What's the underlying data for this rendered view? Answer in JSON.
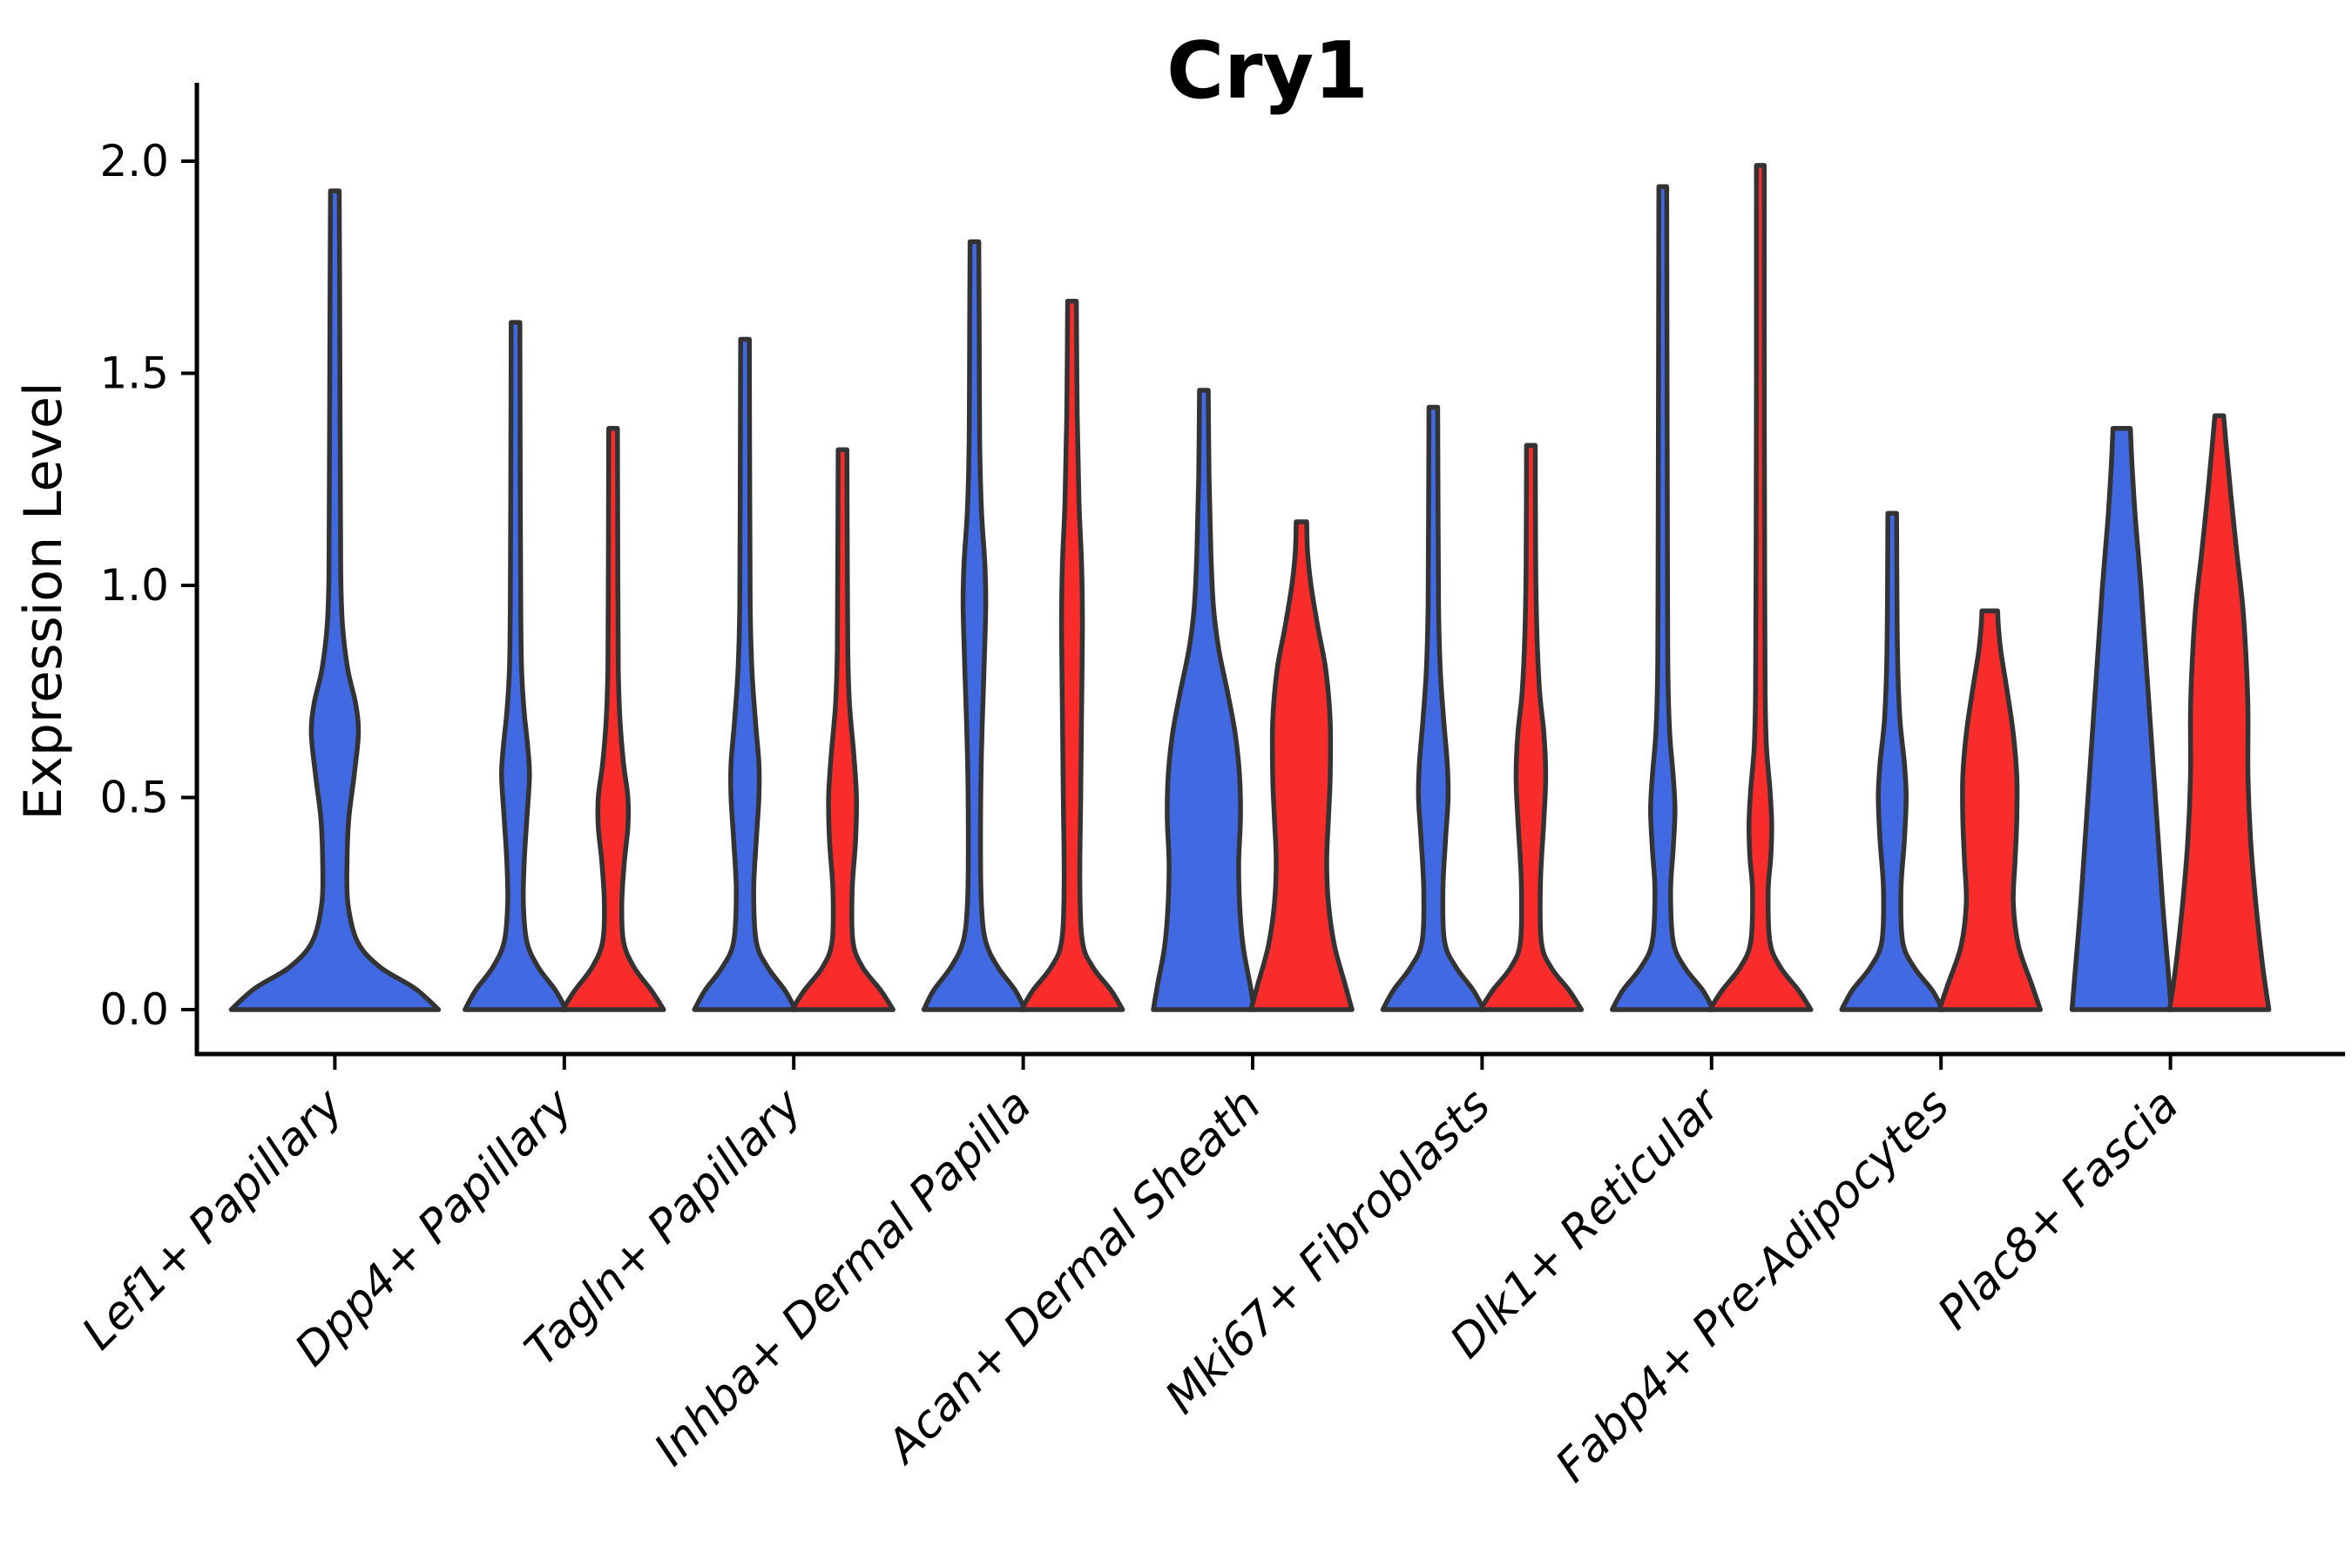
{
  "title": "Cry1",
  "axes": {
    "y": {
      "label": "Expression Level",
      "tick_labels": [
        "0.0",
        "0.5",
        "1.0",
        "1.5",
        "2.0"
      ],
      "tick_values": [
        0,
        0.5,
        1.0,
        1.5,
        2.0
      ],
      "range": [
        0,
        2.05
      ]
    },
    "x": {
      "categories": [
        "Lef1+ Papillary",
        "Dpp4+ Papillary",
        "Tagln+ Papillary",
        "Inhba+ Dermal Papilla",
        "Acan+ Dermal Sheath",
        "Mki67+ Fibroblasts",
        "Dlk1+ Reticular",
        "Fabp4+ Pre-Adipocytes",
        "Plac8+ Fascia"
      ]
    }
  },
  "colors": {
    "blue_fill": "#4169E1",
    "red_fill": "#F92C2C",
    "outline": "#333333",
    "axis": "#000000"
  },
  "chart_data": {
    "type": "violin",
    "title": "Cry1",
    "ylabel": "Expression Level",
    "ylim": [
      0,
      2.05
    ],
    "grid": false,
    "legend": "none",
    "categories": [
      "Lef1+ Papillary",
      "Dpp4+ Papillary",
      "Tagln+ Papillary",
      "Inhba+ Dermal Papilla",
      "Acan+ Dermal Sheath",
      "Mki67+ Fibroblasts",
      "Dlk1+ Reticular",
      "Fabp4+ Pre-Adipocytes",
      "Plac8+ Fascia"
    ],
    "note": "Split violin plot; each category has a blue (left) and red (right) violin except Lef1+ Papillary which has a single blue violin. Profiles are [expression_value, half_width_px] density outlines; max = top of violin spike.",
    "violins": [
      {
        "category": "Lef1+ Papillary",
        "side": "blue",
        "max": 1.93,
        "profile": [
          [
            0,
            119
          ],
          [
            0.05,
            92
          ],
          [
            0.1,
            52
          ],
          [
            0.16,
            26
          ],
          [
            0.25,
            15
          ],
          [
            0.35,
            14
          ],
          [
            0.45,
            16
          ],
          [
            0.55,
            22
          ],
          [
            0.65,
            27
          ],
          [
            0.72,
            24
          ],
          [
            0.8,
            15
          ],
          [
            0.9,
            9
          ],
          [
            1.0,
            7
          ],
          [
            1.15,
            6.5
          ],
          [
            1.4,
            6
          ],
          [
            1.7,
            5.5
          ],
          [
            1.93,
            5
          ]
        ]
      },
      {
        "category": "Dpp4+ Papillary",
        "side": "blue",
        "max": 1.62,
        "profile": [
          [
            0,
            58
          ],
          [
            0.045,
            46
          ],
          [
            0.1,
            26
          ],
          [
            0.16,
            13
          ],
          [
            0.25,
            9
          ],
          [
            0.35,
            10
          ],
          [
            0.45,
            13
          ],
          [
            0.55,
            16
          ],
          [
            0.62,
            14
          ],
          [
            0.7,
            10
          ],
          [
            0.8,
            7
          ],
          [
            0.95,
            6
          ],
          [
            1.2,
            5.5
          ],
          [
            1.62,
            5
          ]
        ]
      },
      {
        "category": "Dpp4+ Papillary",
        "side": "red",
        "max": 1.37,
        "profile": [
          [
            0,
            58
          ],
          [
            0.045,
            44
          ],
          [
            0.1,
            24
          ],
          [
            0.16,
            12
          ],
          [
            0.25,
            10
          ],
          [
            0.35,
            13
          ],
          [
            0.43,
            17
          ],
          [
            0.5,
            17
          ],
          [
            0.58,
            12
          ],
          [
            0.68,
            8
          ],
          [
            0.8,
            6
          ],
          [
            1.0,
            5.5
          ],
          [
            1.37,
            5
          ]
        ]
      },
      {
        "category": "Tagln+ Papillary",
        "side": "blue",
        "max": 1.58,
        "profile": [
          [
            0,
            58
          ],
          [
            0.045,
            46
          ],
          [
            0.1,
            26
          ],
          [
            0.16,
            13
          ],
          [
            0.28,
            10
          ],
          [
            0.4,
            13
          ],
          [
            0.5,
            16
          ],
          [
            0.58,
            16
          ],
          [
            0.68,
            12
          ],
          [
            0.8,
            8
          ],
          [
            0.95,
            6
          ],
          [
            1.2,
            5.5
          ],
          [
            1.58,
            5
          ]
        ]
      },
      {
        "category": "Tagln+ Papillary",
        "side": "red",
        "max": 1.32,
        "profile": [
          [
            0,
            58
          ],
          [
            0.045,
            44
          ],
          [
            0.1,
            23
          ],
          [
            0.16,
            12
          ],
          [
            0.28,
            11
          ],
          [
            0.4,
            15
          ],
          [
            0.5,
            16
          ],
          [
            0.6,
            13
          ],
          [
            0.72,
            8
          ],
          [
            0.85,
            6
          ],
          [
            1.05,
            5.5
          ],
          [
            1.32,
            5
          ]
        ]
      },
      {
        "category": "Inhba+ Dermal Papilla",
        "side": "blue",
        "max": 1.81,
        "profile": [
          [
            0,
            58
          ],
          [
            0.045,
            47
          ],
          [
            0.1,
            27
          ],
          [
            0.16,
            13
          ],
          [
            0.25,
            8
          ],
          [
            0.4,
            7
          ],
          [
            0.6,
            8
          ],
          [
            0.8,
            11
          ],
          [
            0.95,
            13
          ],
          [
            1.05,
            12
          ],
          [
            1.18,
            8
          ],
          [
            1.35,
            6
          ],
          [
            1.6,
            5.5
          ],
          [
            1.81,
            5
          ]
        ]
      },
      {
        "category": "Inhba+ Dermal Papilla",
        "side": "red",
        "max": 1.67,
        "profile": [
          [
            0,
            58
          ],
          [
            0.045,
            45
          ],
          [
            0.1,
            24
          ],
          [
            0.16,
            12
          ],
          [
            0.3,
            9
          ],
          [
            0.5,
            10
          ],
          [
            0.7,
            11
          ],
          [
            0.9,
            12
          ],
          [
            1.05,
            11
          ],
          [
            1.2,
            8
          ],
          [
            1.4,
            6
          ],
          [
            1.67,
            5
          ]
        ]
      },
      {
        "category": "Acan+ Dermal Sheath",
        "side": "blue",
        "max": 1.46,
        "profile": [
          [
            0,
            58
          ],
          [
            0.06,
            53
          ],
          [
            0.15,
            45
          ],
          [
            0.25,
            41
          ],
          [
            0.35,
            40
          ],
          [
            0.45,
            42
          ],
          [
            0.55,
            41
          ],
          [
            0.65,
            36
          ],
          [
            0.75,
            27
          ],
          [
            0.85,
            17
          ],
          [
            0.95,
            11
          ],
          [
            1.08,
            8
          ],
          [
            1.25,
            6
          ],
          [
            1.46,
            5
          ]
        ]
      },
      {
        "category": "Acan+ Dermal Sheath",
        "side": "red",
        "max": 1.15,
        "profile": [
          [
            0,
            58
          ],
          [
            0.06,
            50
          ],
          [
            0.15,
            38
          ],
          [
            0.25,
            31
          ],
          [
            0.35,
            29
          ],
          [
            0.45,
            31
          ],
          [
            0.55,
            33
          ],
          [
            0.68,
            33
          ],
          [
            0.8,
            28
          ],
          [
            0.9,
            19
          ],
          [
            1.0,
            11
          ],
          [
            1.08,
            7
          ],
          [
            1.15,
            6
          ]
        ]
      },
      {
        "category": "Mki67+ Fibroblasts",
        "side": "blue",
        "max": 1.42,
        "profile": [
          [
            0,
            58
          ],
          [
            0.045,
            46
          ],
          [
            0.1,
            26
          ],
          [
            0.16,
            13
          ],
          [
            0.28,
            11
          ],
          [
            0.4,
            14
          ],
          [
            0.5,
            17
          ],
          [
            0.58,
            16
          ],
          [
            0.68,
            12
          ],
          [
            0.8,
            8
          ],
          [
            0.95,
            6
          ],
          [
            1.15,
            5.5
          ],
          [
            1.42,
            5
          ]
        ]
      },
      {
        "category": "Mki67+ Fibroblasts",
        "side": "red",
        "max": 1.33,
        "profile": [
          [
            0,
            58
          ],
          [
            0.045,
            44
          ],
          [
            0.1,
            23
          ],
          [
            0.16,
            12
          ],
          [
            0.3,
            11
          ],
          [
            0.45,
            15
          ],
          [
            0.55,
            17
          ],
          [
            0.65,
            15
          ],
          [
            0.75,
            10
          ],
          [
            0.88,
            7
          ],
          [
            1.05,
            5.5
          ],
          [
            1.33,
            5
          ]
        ]
      },
      {
        "category": "Dlk1+ Reticular",
        "side": "blue",
        "max": 1.94,
        "profile": [
          [
            0,
            58
          ],
          [
            0.045,
            46
          ],
          [
            0.1,
            25
          ],
          [
            0.16,
            12
          ],
          [
            0.28,
            9
          ],
          [
            0.38,
            12
          ],
          [
            0.47,
            14
          ],
          [
            0.55,
            12
          ],
          [
            0.65,
            8
          ],
          [
            0.78,
            6
          ],
          [
            0.95,
            5.5
          ],
          [
            1.4,
            5
          ],
          [
            1.94,
            4.5
          ]
        ]
      },
      {
        "category": "Dlk1+ Reticular",
        "side": "red",
        "max": 1.99,
        "profile": [
          [
            0,
            58
          ],
          [
            0.045,
            44
          ],
          [
            0.1,
            23
          ],
          [
            0.16,
            11
          ],
          [
            0.28,
            9
          ],
          [
            0.36,
            12
          ],
          [
            0.44,
            13
          ],
          [
            0.52,
            11
          ],
          [
            0.62,
            7
          ],
          [
            0.75,
            5.5
          ],
          [
            1.0,
            5
          ],
          [
            1.5,
            4.5
          ],
          [
            1.99,
            4.5
          ]
        ]
      },
      {
        "category": "Fabp4+ Pre-Adipocytes",
        "side": "blue",
        "max": 1.17,
        "profile": [
          [
            0,
            58
          ],
          [
            0.045,
            46
          ],
          [
            0.1,
            25
          ],
          [
            0.16,
            12
          ],
          [
            0.28,
            10
          ],
          [
            0.4,
            14
          ],
          [
            0.5,
            16
          ],
          [
            0.58,
            14
          ],
          [
            0.68,
            9
          ],
          [
            0.8,
            6.5
          ],
          [
            0.95,
            5.5
          ],
          [
            1.17,
            5
          ]
        ]
      },
      {
        "category": "Fabp4+ Pre-Adipocytes",
        "side": "red",
        "max": 0.94,
        "profile": [
          [
            0,
            58
          ],
          [
            0.06,
            48
          ],
          [
            0.15,
            33
          ],
          [
            0.25,
            27
          ],
          [
            0.35,
            29
          ],
          [
            0.45,
            31
          ],
          [
            0.55,
            31
          ],
          [
            0.65,
            27
          ],
          [
            0.75,
            20
          ],
          [
            0.84,
            13
          ],
          [
            0.9,
            10
          ],
          [
            0.94,
            9
          ]
        ]
      },
      {
        "category": "Plac8+ Fascia",
        "side": "blue",
        "max": 1.37,
        "profile": [
          [
            0,
            57
          ],
          [
            0.1,
            53
          ],
          [
            0.25,
            47
          ],
          [
            0.4,
            42
          ],
          [
            0.55,
            37
          ],
          [
            0.7,
            32
          ],
          [
            0.85,
            27
          ],
          [
            1.0,
            22
          ],
          [
            1.15,
            16
          ],
          [
            1.28,
            12
          ],
          [
            1.37,
            10
          ]
        ]
      },
      {
        "category": "Plac8+ Fascia",
        "side": "red",
        "max": 1.4,
        "profile": [
          [
            0,
            57
          ],
          [
            0.1,
            50
          ],
          [
            0.25,
            42
          ],
          [
            0.4,
            36
          ],
          [
            0.55,
            33
          ],
          [
            0.7,
            33
          ],
          [
            0.82,
            31
          ],
          [
            0.95,
            27
          ],
          [
            1.08,
            20
          ],
          [
            1.22,
            13
          ],
          [
            1.33,
            8
          ],
          [
            1.4,
            5
          ]
        ]
      }
    ]
  }
}
